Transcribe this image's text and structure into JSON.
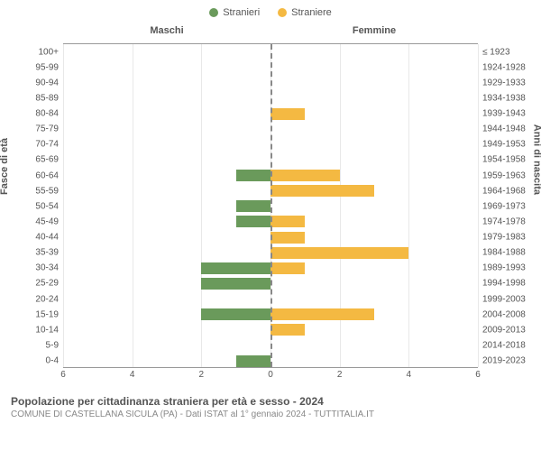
{
  "legend": {
    "male_label": "Stranieri",
    "female_label": "Straniere"
  },
  "header": {
    "left": "Maschi",
    "right": "Femmine"
  },
  "axis": {
    "left_label": "Fasce di età",
    "right_label": "Anni di nascita",
    "x_max": 6,
    "x_ticks": [
      6,
      4,
      2,
      0,
      2,
      4,
      6
    ]
  },
  "colors": {
    "male": "#6a9a5b",
    "female": "#f4b942",
    "background": "#ffffff",
    "grid": "#e8e8e8",
    "axis_line": "#999",
    "text": "#555",
    "subtext": "#888",
    "center_line": "#888"
  },
  "chart": {
    "type": "population-pyramid",
    "rows": [
      {
        "age": "100+",
        "birth": "≤ 1923",
        "male": 0,
        "female": 0
      },
      {
        "age": "95-99",
        "birth": "1924-1928",
        "male": 0,
        "female": 0
      },
      {
        "age": "90-94",
        "birth": "1929-1933",
        "male": 0,
        "female": 0
      },
      {
        "age": "85-89",
        "birth": "1934-1938",
        "male": 0,
        "female": 0
      },
      {
        "age": "80-84",
        "birth": "1939-1943",
        "male": 0,
        "female": 1
      },
      {
        "age": "75-79",
        "birth": "1944-1948",
        "male": 0,
        "female": 0
      },
      {
        "age": "70-74",
        "birth": "1949-1953",
        "male": 0,
        "female": 0
      },
      {
        "age": "65-69",
        "birth": "1954-1958",
        "male": 0,
        "female": 0
      },
      {
        "age": "60-64",
        "birth": "1959-1963",
        "male": 1,
        "female": 2
      },
      {
        "age": "55-59",
        "birth": "1964-1968",
        "male": 0,
        "female": 3
      },
      {
        "age": "50-54",
        "birth": "1969-1973",
        "male": 1,
        "female": 0
      },
      {
        "age": "45-49",
        "birth": "1974-1978",
        "male": 1,
        "female": 1
      },
      {
        "age": "40-44",
        "birth": "1979-1983",
        "male": 0,
        "female": 1
      },
      {
        "age": "35-39",
        "birth": "1984-1988",
        "male": 0,
        "female": 4
      },
      {
        "age": "30-34",
        "birth": "1989-1993",
        "male": 2,
        "female": 1
      },
      {
        "age": "25-29",
        "birth": "1994-1998",
        "male": 2,
        "female": 0
      },
      {
        "age": "20-24",
        "birth": "1999-2003",
        "male": 0,
        "female": 0
      },
      {
        "age": "15-19",
        "birth": "2004-2008",
        "male": 2,
        "female": 3
      },
      {
        "age": "10-14",
        "birth": "2009-2013",
        "male": 0,
        "female": 1
      },
      {
        "age": "5-9",
        "birth": "2014-2018",
        "male": 0,
        "female": 0
      },
      {
        "age": "0-4",
        "birth": "2019-2023",
        "male": 1,
        "female": 0
      }
    ]
  },
  "footer": {
    "title": "Popolazione per cittadinanza straniera per età e sesso - 2024",
    "subtitle": "COMUNE DI CASTELLANA SICULA (PA) - Dati ISTAT al 1° gennaio 2024 - TUTTITALIA.IT"
  }
}
